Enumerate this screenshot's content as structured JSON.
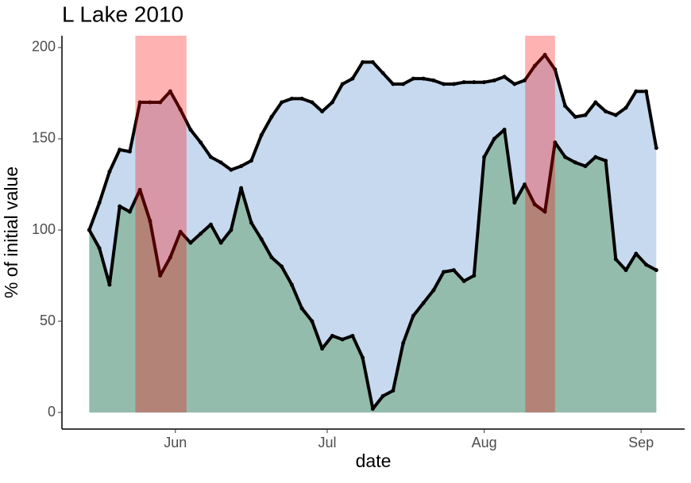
{
  "chart_data": {
    "type": "area",
    "title": "L Lake 2010",
    "x_label": "date",
    "y_label": "% of initial value",
    "x": [
      135,
      137,
      139,
      141,
      143,
      145,
      147,
      149,
      151,
      153,
      155,
      157,
      159,
      161,
      163,
      165,
      167,
      169,
      171,
      173,
      175,
      177,
      179,
      181,
      183,
      185,
      187,
      189,
      191,
      193,
      195,
      197,
      199,
      201,
      203,
      205,
      207,
      209,
      211,
      213,
      215,
      217,
      219,
      221,
      223,
      225,
      227,
      229,
      231,
      233,
      235,
      237,
      239,
      241,
      243,
      245,
      247
    ],
    "series": [
      {
        "color": "#c6d9ee",
        "values": [
          100,
          115,
          132,
          144,
          143,
          170,
          170,
          170,
          176,
          166,
          155,
          148,
          140,
          137,
          133,
          135,
          138,
          152,
          162,
          170,
          172,
          172,
          170,
          165,
          170,
          180,
          183,
          192,
          192,
          186,
          180,
          180,
          183,
          183,
          182,
          180,
          180,
          181,
          181,
          181,
          182,
          184,
          180,
          182,
          190,
          196,
          188,
          168,
          162,
          163,
          170,
          165,
          163,
          167,
          176,
          176,
          145
        ]
      },
      {
        "color": "#93bcac",
        "values": [
          100,
          90,
          70,
          113,
          110,
          122,
          105,
          75,
          85,
          99,
          93,
          98,
          103,
          93,
          100,
          123,
          104,
          95,
          85,
          80,
          70,
          57,
          50,
          35,
          42,
          40,
          42,
          30,
          2,
          9,
          12,
          38,
          53,
          60,
          67,
          77,
          78,
          72,
          75,
          140,
          150,
          155,
          115,
          125,
          114,
          110,
          148,
          140,
          137,
          135,
          140,
          138,
          84,
          78,
          87,
          81,
          78
        ]
      }
    ],
    "highlights": [
      [
        144.1,
        154.2
      ],
      [
        221.1,
        227.0
      ]
    ],
    "highlight_color": "rgba(255,0,0,0.3)",
    "line_color": "#000000",
    "xlim": [
      129.6,
      252.6
    ],
    "xticks": [
      {
        "value": 152,
        "label": "Jun"
      },
      {
        "value": 182,
        "label": "Jul"
      },
      {
        "value": 213,
        "label": "Aug"
      },
      {
        "value": 244,
        "label": "Sep"
      }
    ],
    "ylim": [
      -9.1,
      206.5
    ],
    "yticks": [
      0,
      50,
      100,
      150,
      200
    ],
    "grid": false
  }
}
